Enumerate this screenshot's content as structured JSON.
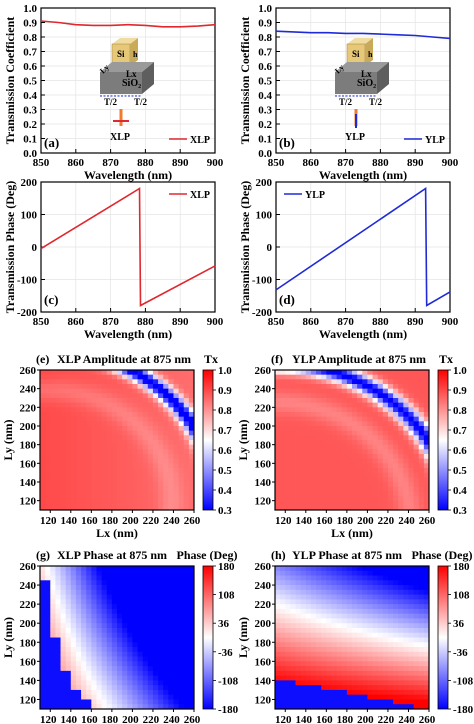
{
  "chart_data": [
    {
      "type": "line",
      "panel_label": "(a)",
      "ylabel": "Transmission Coefficient",
      "xlabel": "Wavelength (nm)",
      "xlim": [
        850,
        900
      ],
      "ylim": [
        0,
        1.0
      ],
      "xticks": [
        "850",
        "860",
        "870",
        "880",
        "890",
        "900"
      ],
      "yticks": [
        "0.0",
        "0.1",
        "0.2",
        "0.3",
        "0.4",
        "0.5",
        "0.6",
        "0.7",
        "0.8",
        "0.9",
        "1.0"
      ],
      "legend": "XLP",
      "legend_position": "bottom-right",
      "color": "#e0282e",
      "x": [
        850,
        855,
        860,
        865,
        870,
        875,
        880,
        885,
        890,
        895,
        900
      ],
      "y": [
        0.91,
        0.9,
        0.885,
        0.88,
        0.88,
        0.885,
        0.88,
        0.87,
        0.87,
        0.875,
        0.885
      ],
      "inset": {
        "si": "Si",
        "h": "h",
        "lx": "Lx",
        "ly": "Ly",
        "sio2": "SiO₂",
        "t": "T/2",
        "pol": "XLP"
      }
    },
    {
      "type": "line",
      "panel_label": "(b)",
      "ylabel": "Transmission Coefficient",
      "xlabel": "Wavelength (nm)",
      "xlim": [
        850,
        900
      ],
      "ylim": [
        0,
        1.0
      ],
      "xticks": [
        "850",
        "860",
        "870",
        "880",
        "890",
        "900"
      ],
      "yticks": [
        "0.0",
        "0.1",
        "0.2",
        "0.3",
        "0.4",
        "0.5",
        "0.6",
        "0.7",
        "0.8",
        "0.9",
        "1.0"
      ],
      "legend": "YLP",
      "legend_position": "bottom-right",
      "color": "#1f2bd6",
      "x": [
        850,
        855,
        860,
        865,
        870,
        875,
        880,
        885,
        890,
        895,
        900
      ],
      "y": [
        0.84,
        0.835,
        0.83,
        0.83,
        0.825,
        0.825,
        0.82,
        0.815,
        0.81,
        0.8,
        0.79
      ],
      "inset": {
        "si": "Si",
        "h": "h",
        "lx": "Lx",
        "ly": "Ly",
        "sio2": "SiO₂",
        "t": "T/2",
        "pol": "YLP"
      }
    },
    {
      "type": "line",
      "panel_label": "(c)",
      "ylabel": "Transmission Phase (Deg)",
      "xlabel": "Wavelength (nm)",
      "xlim": [
        850,
        900
      ],
      "ylim": [
        -200,
        200
      ],
      "xticks": [
        "850",
        "860",
        "870",
        "880",
        "890",
        "900"
      ],
      "yticks": [
        "-200",
        "-100",
        "0",
        "100",
        "200"
      ],
      "legend": "XLP",
      "legend_position": "top-right",
      "color": "#e0282e",
      "x": [
        850,
        878.3,
        878.6,
        900
      ],
      "y": [
        -5,
        180,
        -180,
        -58
      ]
    },
    {
      "type": "line",
      "panel_label": "(d)",
      "ylabel": "Transmission Phase (Deg)",
      "xlabel": "Wavelength (nm)",
      "xlim": [
        850,
        900
      ],
      "ylim": [
        -200,
        200
      ],
      "xticks": [
        "850",
        "860",
        "870",
        "880",
        "890",
        "900"
      ],
      "yticks": [
        "-200",
        "-100",
        "0",
        "100",
        "200"
      ],
      "legend": "YLP",
      "legend_position": "top-left",
      "color": "#1f2bd6",
      "x": [
        850,
        893,
        893.3,
        900
      ],
      "y": [
        -132,
        180,
        -180,
        -138
      ]
    },
    {
      "type": "heatmap",
      "panel_label": "(e)",
      "title": "XLP Amplitude at 875 nm",
      "colorbar_label": "Tx",
      "xlabel": "Lx (nm)",
      "ylabel": "Ly (nm)",
      "xlim": [
        110,
        260
      ],
      "ylim": [
        110,
        260
      ],
      "xticks": [
        "120",
        "140",
        "160",
        "180",
        "200",
        "220",
        "240",
        "260"
      ],
      "yticks": [
        "120",
        "140",
        "160",
        "180",
        "200",
        "220",
        "240",
        "260"
      ],
      "clim": [
        0.3,
        1.0
      ],
      "colorbar_ticks": [
        "0.3",
        "0.4",
        "0.5",
        "0.6",
        "0.7",
        "0.8",
        "0.9",
        "1.0"
      ],
      "description": "Mostly high transmission (~0.9); a narrow low-transmission arc (~0.3) curving from Lx=200,Ly=260 to Lx=260,Ly=205"
    },
    {
      "type": "heatmap",
      "panel_label": "(f)",
      "title": "YLP Amplitude at 875 nm",
      "colorbar_label": "Tx",
      "xlabel": "Lx (nm)",
      "ylabel": "Ly (nm)",
      "xlim": [
        110,
        260
      ],
      "ylim": [
        110,
        260
      ],
      "xticks": [
        "120",
        "140",
        "160",
        "180",
        "200",
        "220",
        "240",
        "260"
      ],
      "yticks": [
        "120",
        "140",
        "160",
        "180",
        "200",
        "220",
        "240",
        "260"
      ],
      "clim": [
        0.3,
        1.0
      ],
      "colorbar_ticks": [
        "0.3",
        "0.4",
        "0.5",
        "0.6",
        "0.7",
        "0.8",
        "0.9",
        "1.0"
      ],
      "description": "Mostly high transmission; a low-transmission arc from Lx=205,Ly=260 to Lx=260,Ly=225"
    },
    {
      "type": "heatmap",
      "panel_label": "(g)",
      "title": "XLP Phase at 875 nm",
      "colorbar_label": "Phase (Deg)",
      "xlabel": "Lx (nm)",
      "ylabel": "Ly (nm)",
      "xlim": [
        110,
        260
      ],
      "ylim": [
        110,
        260
      ],
      "xticks": [
        "120",
        "140",
        "160",
        "180",
        "200",
        "220",
        "240",
        "260"
      ],
      "yticks": [
        "120",
        "140",
        "160",
        "180",
        "200",
        "220",
        "240",
        "260"
      ],
      "clim": [
        -180,
        180
      ],
      "colorbar_ticks": [
        "-180",
        "-108",
        "-36",
        "36",
        "108",
        "180"
      ],
      "description": "Phase decreases with increasing Lx and Ly; wraps from -180 to 180 near the lower-left corner"
    },
    {
      "type": "heatmap",
      "panel_label": "(h)",
      "title": "YLP Phase at 875 nm",
      "colorbar_label": "Phase (Deg)",
      "xlabel": "Lx (nm)",
      "ylabel": "Ly (nm)",
      "xlim": [
        110,
        260
      ],
      "ylim": [
        110,
        260
      ],
      "xticks": [
        "120",
        "140",
        "160",
        "180",
        "200",
        "220",
        "240",
        "260"
      ],
      "yticks": [
        "120",
        "140",
        "160",
        "180",
        "200",
        "220",
        "240",
        "260"
      ],
      "clim": [
        -180,
        180
      ],
      "colorbar_ticks": [
        "-180",
        "-108",
        "-36",
        "36",
        "108",
        "180"
      ],
      "description": "Phase decreases with increasing Ly; wraps from -180 to 180 along the bottom rows"
    }
  ],
  "colors": {
    "red": "#e0282e",
    "blue": "#1f2bd6",
    "white": "#ffffff"
  }
}
